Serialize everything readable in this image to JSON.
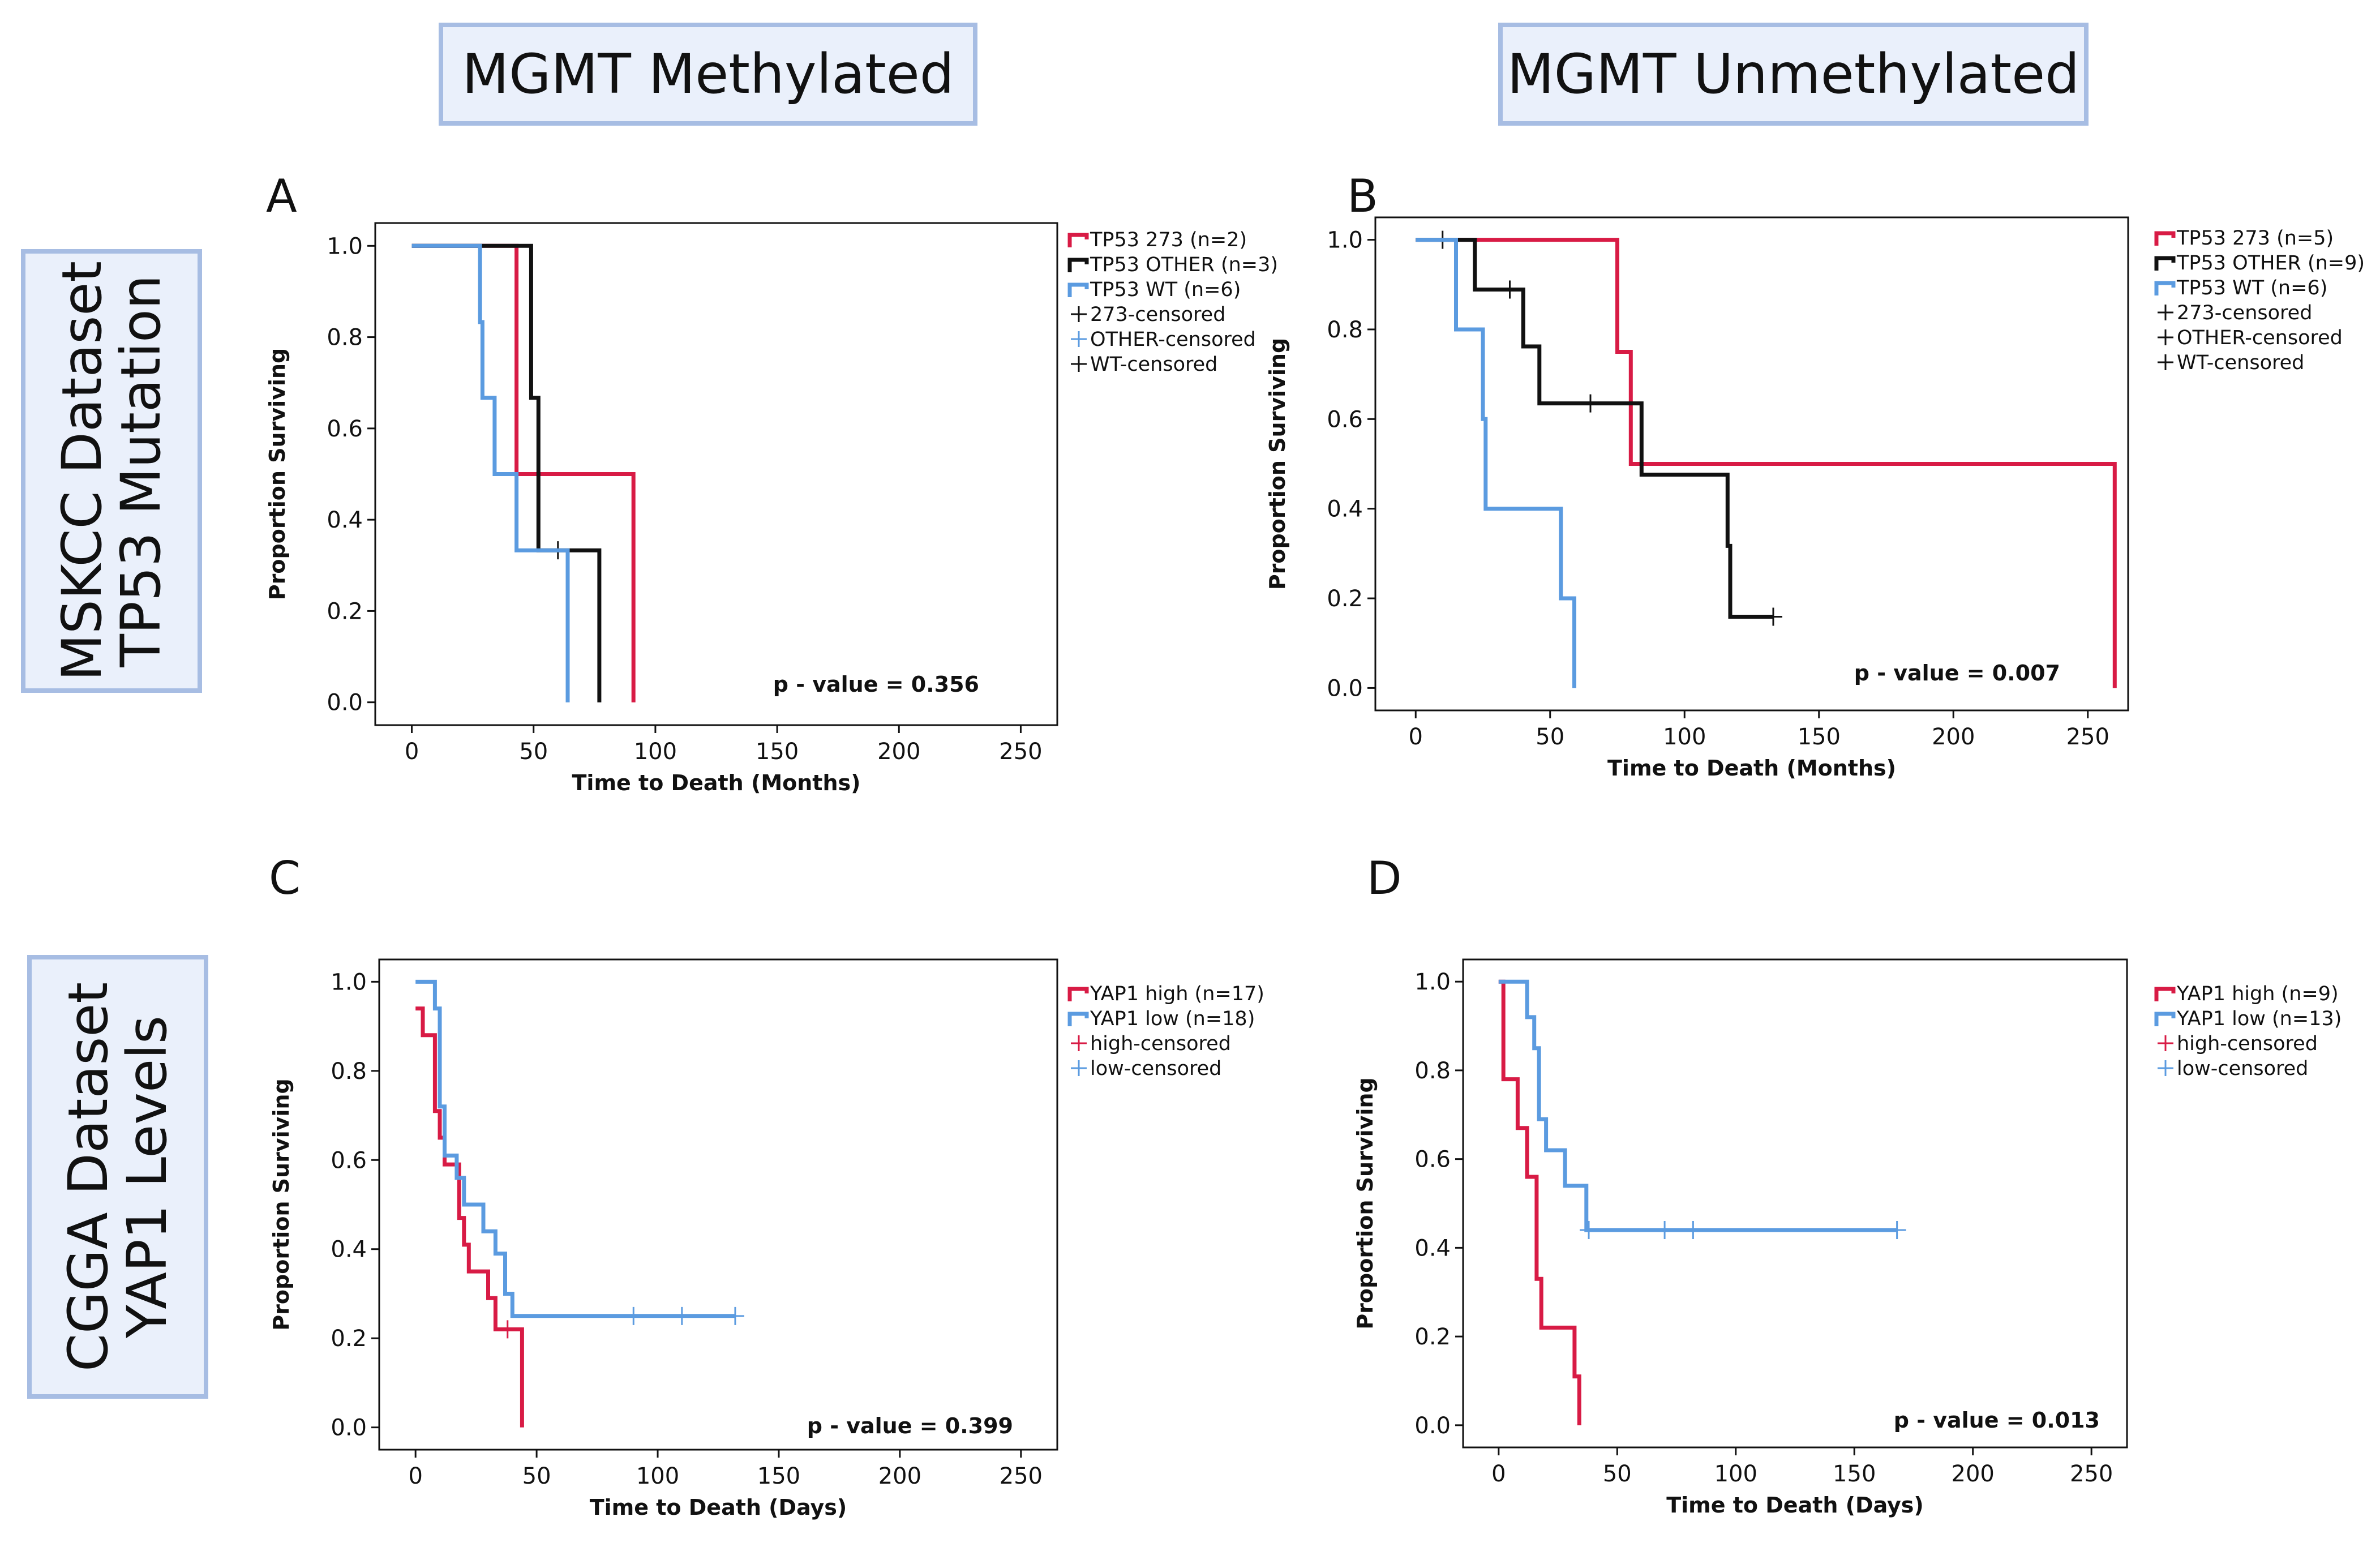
{
  "headers": {
    "col1": "MGMT Methylated",
    "col2": "MGMT Unmethylated",
    "row1": [
      "MSKCC Dataset",
      "TP53 Mutation"
    ],
    "row2": [
      "CGGA Dataset",
      "YAP1 Levels"
    ]
  },
  "colors": {
    "red": "#d81b45",
    "black": "#111111",
    "blue": "#5b9be0"
  },
  "chart_data": [
    {
      "panel": "A",
      "type": "line",
      "subtype": "kaplan-meier step",
      "xlabel": "Time to Death (Months)",
      "ylabel": "Proportion Surviving",
      "xlim": [
        -15,
        265
      ],
      "ylim": [
        -0.05,
        1.05
      ],
      "xticks": [
        0,
        50,
        100,
        150,
        200,
        250
      ],
      "yticks": [
        0.0,
        0.2,
        0.4,
        0.6,
        0.8,
        1.0
      ],
      "pvalue": "p - value = 0.356",
      "series": [
        {
          "name": "TP53 273 (n=2)",
          "color": "red",
          "x": [
            0,
            43,
            43,
            91,
            91
          ],
          "y": [
            1.0,
            1.0,
            0.5,
            0.5,
            0.0
          ],
          "censored": []
        },
        {
          "name": "TP53 OTHER (n=3)",
          "color": "black",
          "x": [
            0,
            49,
            49,
            52,
            52,
            77,
            77
          ],
          "y": [
            1.0,
            1.0,
            0.667,
            0.667,
            0.333,
            0.333,
            0.0
          ],
          "censored": [
            [
              60,
              0.333
            ]
          ]
        },
        {
          "name": "TP53 WT (n=6)",
          "color": "blue",
          "x": [
            0,
            28,
            28,
            29,
            29,
            34,
            34,
            43,
            43,
            64,
            64
          ],
          "y": [
            1.0,
            1.0,
            0.833,
            0.833,
            0.667,
            0.667,
            0.5,
            0.5,
            0.333,
            0.333,
            0.0
          ],
          "censored": []
        }
      ],
      "legend": [
        "TP53 273 (n=2)",
        "TP53 OTHER (n=3)",
        "TP53 WT (n=6)",
        "273-censored",
        "OTHER-censored",
        "WT-censored"
      ],
      "legend_kinds": [
        "line",
        "line",
        "line",
        "cross",
        "cross",
        "cross"
      ],
      "legend_colors": [
        "red",
        "black",
        "blue",
        "black",
        "blue",
        "black"
      ]
    },
    {
      "panel": "B",
      "type": "line",
      "subtype": "kaplan-meier step",
      "xlabel": "Time to Death (Months)",
      "ylabel": "Proportion Surviving",
      "xlim": [
        -15,
        265
      ],
      "ylim": [
        -0.05,
        1.05
      ],
      "xticks": [
        0,
        50,
        100,
        150,
        200,
        250
      ],
      "yticks": [
        0.0,
        0.2,
        0.4,
        0.6,
        0.8,
        1.0
      ],
      "pvalue": "p - value = 0.007",
      "series": [
        {
          "name": "TP53 273 (n=5)",
          "color": "red",
          "x": [
            0,
            75,
            75,
            80,
            80,
            260,
            260
          ],
          "y": [
            1.0,
            1.0,
            0.75,
            0.75,
            0.5,
            0.5,
            0.0
          ],
          "censored": []
        },
        {
          "name": "TP53 OTHER (n=9)",
          "color": "black",
          "x": [
            0,
            22,
            22,
            40,
            40,
            46,
            46,
            84,
            84,
            116,
            116,
            117,
            117,
            133
          ],
          "y": [
            1.0,
            1.0,
            0.889,
            0.889,
            0.762,
            0.762,
            0.635,
            0.635,
            0.476,
            0.476,
            0.317,
            0.317,
            0.159,
            0.159
          ],
          "censored": [
            [
              10,
              1.0
            ],
            [
              35,
              0.889
            ],
            [
              65,
              0.635
            ],
            [
              133,
              0.159
            ]
          ]
        },
        {
          "name": "TP53 WT (n=6)",
          "color": "blue",
          "x": [
            0,
            15,
            15,
            25,
            25,
            26,
            26,
            54,
            54,
            59,
            59
          ],
          "y": [
            1.0,
            1.0,
            0.8,
            0.8,
            0.6,
            0.6,
            0.4,
            0.4,
            0.2,
            0.2,
            0.0
          ],
          "censored": []
        }
      ],
      "legend": [
        "TP53 273 (n=5)",
        "TP53 OTHER (n=9)",
        "TP53 WT (n=6)",
        "273-censored",
        "OTHER-censored",
        "WT-censored"
      ],
      "legend_kinds": [
        "line",
        "line",
        "line",
        "cross",
        "cross",
        "cross"
      ],
      "legend_colors": [
        "red",
        "black",
        "blue",
        "black",
        "black",
        "black"
      ]
    },
    {
      "panel": "C",
      "type": "line",
      "subtype": "kaplan-meier step",
      "xlabel": "Time to Death (Days)",
      "ylabel": "Proportion Surviving",
      "xlim": [
        -15,
        265
      ],
      "ylim": [
        -0.05,
        1.05
      ],
      "xticks": [
        0,
        50,
        100,
        150,
        200,
        250
      ],
      "yticks": [
        0.0,
        0.2,
        0.4,
        0.6,
        0.8,
        1.0
      ],
      "pvalue": "p - value = 0.399",
      "series": [
        {
          "name": "YAP1 high (n=17)",
          "color": "red",
          "x": [
            0,
            3,
            3,
            8,
            8,
            10,
            10,
            12,
            12,
            18,
            18,
            20,
            20,
            22,
            22,
            30,
            30,
            33,
            33,
            38,
            38,
            44,
            44
          ],
          "y": [
            0.94,
            0.94,
            0.88,
            0.88,
            0.71,
            0.71,
            0.65,
            0.65,
            0.59,
            0.59,
            0.47,
            0.47,
            0.41,
            0.41,
            0.35,
            0.35,
            0.29,
            0.29,
            0.22,
            0.22,
            0.22,
            0.22,
            0.0
          ],
          "censored": [
            [
              38,
              0.22
            ]
          ]
        },
        {
          "name": "YAP1 low (n=18)",
          "color": "blue",
          "x": [
            0,
            8,
            8,
            10,
            10,
            12,
            12,
            17,
            17,
            20,
            20,
            28,
            28,
            33,
            33,
            37,
            37,
            40,
            40,
            132
          ],
          "y": [
            1.0,
            1.0,
            0.94,
            0.94,
            0.72,
            0.72,
            0.61,
            0.61,
            0.56,
            0.56,
            0.5,
            0.5,
            0.44,
            0.44,
            0.39,
            0.39,
            0.3,
            0.3,
            0.25,
            0.25
          ],
          "censored": [
            [
              90,
              0.25
            ],
            [
              110,
              0.25
            ],
            [
              132,
              0.25
            ]
          ]
        }
      ],
      "legend": [
        "YAP1 high (n=17)",
        "YAP1 low (n=18)",
        "high-censored",
        "low-censored"
      ],
      "legend_kinds": [
        "line",
        "line",
        "cross",
        "cross"
      ],
      "legend_colors": [
        "red",
        "blue",
        "red",
        "blue"
      ]
    },
    {
      "panel": "D",
      "type": "line",
      "subtype": "kaplan-meier step",
      "xlabel": "Time to Death (Days)",
      "ylabel": "Proportion Surviving",
      "xlim": [
        -15,
        265
      ],
      "ylim": [
        -0.05,
        1.05
      ],
      "xticks": [
        0,
        50,
        100,
        150,
        200,
        250
      ],
      "yticks": [
        0.0,
        0.2,
        0.4,
        0.6,
        0.8,
        1.0
      ],
      "pvalue": "p - value = 0.013",
      "series": [
        {
          "name": "YAP1 high (n=9)",
          "color": "red",
          "x": [
            0,
            2,
            2,
            8,
            8,
            12,
            12,
            16,
            16,
            18,
            18,
            32,
            32,
            34,
            34
          ],
          "y": [
            1.0,
            1.0,
            0.78,
            0.78,
            0.67,
            0.67,
            0.56,
            0.56,
            0.33,
            0.33,
            0.22,
            0.22,
            0.11,
            0.11,
            0.0
          ],
          "censored": []
        },
        {
          "name": "YAP1 low (n=13)",
          "color": "blue",
          "x": [
            0,
            12,
            12,
            15,
            15,
            17,
            17,
            20,
            20,
            28,
            28,
            37,
            37,
            168
          ],
          "y": [
            1.0,
            1.0,
            0.92,
            0.92,
            0.85,
            0.85,
            0.69,
            0.69,
            0.62,
            0.62,
            0.54,
            0.54,
            0.44,
            0.44
          ],
          "censored": [
            [
              38,
              0.44
            ],
            [
              70,
              0.44
            ],
            [
              82,
              0.44
            ],
            [
              168,
              0.44
            ]
          ]
        }
      ],
      "legend": [
        "YAP1 high (n=9)",
        "YAP1 low (n=13)",
        "high-censored",
        "low-censored"
      ],
      "legend_kinds": [
        "line",
        "line",
        "cross",
        "cross"
      ],
      "legend_colors": [
        "red",
        "blue",
        "red",
        "blue"
      ]
    }
  ]
}
